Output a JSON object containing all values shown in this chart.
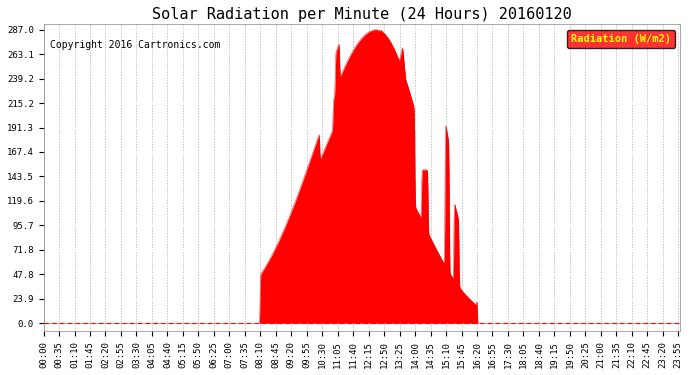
{
  "title": "Solar Radiation per Minute (24 Hours) 20160120",
  "copyright": "Copyright 2016 Cartronics.com",
  "legend_label": "Radiation (W/m2)",
  "ylabel_values": [
    0.0,
    23.9,
    47.8,
    71.8,
    95.7,
    119.6,
    143.5,
    167.4,
    191.3,
    215.2,
    239.2,
    263.1,
    287.0
  ],
  "ymax": 287.0,
  "fill_color": "#FF0000",
  "line_color": "#FF0000",
  "grid_color_h": "#FFFFFF",
  "grid_color_v": "#AAAAAA",
  "bg_color": "#FFFFFF",
  "legend_bg": "#FF0000",
  "legend_text_color": "#FFFF00",
  "dashed_zero_color": "#FF0000",
  "title_fontsize": 11,
  "copyright_fontsize": 7,
  "tick_fontsize": 6.5,
  "tick_interval_minutes": 35
}
